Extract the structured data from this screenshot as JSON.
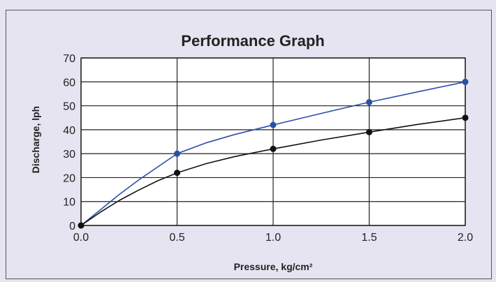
{
  "chart_data": {
    "type": "line",
    "title": "Performance Graph",
    "xlabel": "Pressure, kg/cm²",
    "ylabel": "Discharge, lph",
    "xlim": [
      0,
      2
    ],
    "ylim": [
      0,
      70
    ],
    "x_ticks": [
      "0.0",
      "0.5",
      "1.0",
      "1.5",
      "2.0"
    ],
    "y_ticks": [
      "0",
      "10",
      "20",
      "30",
      "40",
      "50",
      "60",
      "70"
    ],
    "grid": true,
    "legend": "none",
    "series": [
      {
        "color": "#2a4fa8",
        "marker_x": [
          0,
          0.5,
          1.0,
          1.5,
          2.0
        ],
        "marker_y": [
          0,
          30,
          42,
          51.5,
          60
        ],
        "curve_x": [
          0,
          0.1,
          0.2,
          0.3,
          0.4,
          0.5,
          0.65,
          0.8,
          1.0,
          1.25,
          1.5,
          1.75,
          2.0
        ],
        "curve_y": [
          0,
          6.5,
          13,
          19,
          24.5,
          30,
          34.5,
          38,
          42,
          46.8,
          51.5,
          55.8,
          60
        ]
      },
      {
        "color": "#111111",
        "marker_x": [
          0,
          0.5,
          1.0,
          1.5,
          2.0
        ],
        "marker_y": [
          0,
          22,
          32,
          39,
          45
        ],
        "curve_x": [
          0,
          0.1,
          0.2,
          0.3,
          0.4,
          0.5,
          0.65,
          0.8,
          1.0,
          1.25,
          1.5,
          1.75,
          2.0
        ],
        "curve_y": [
          0,
          5.5,
          10.5,
          14.8,
          18.7,
          22,
          25.8,
          28.8,
          32,
          35.7,
          39,
          42.2,
          45
        ]
      }
    ]
  }
}
